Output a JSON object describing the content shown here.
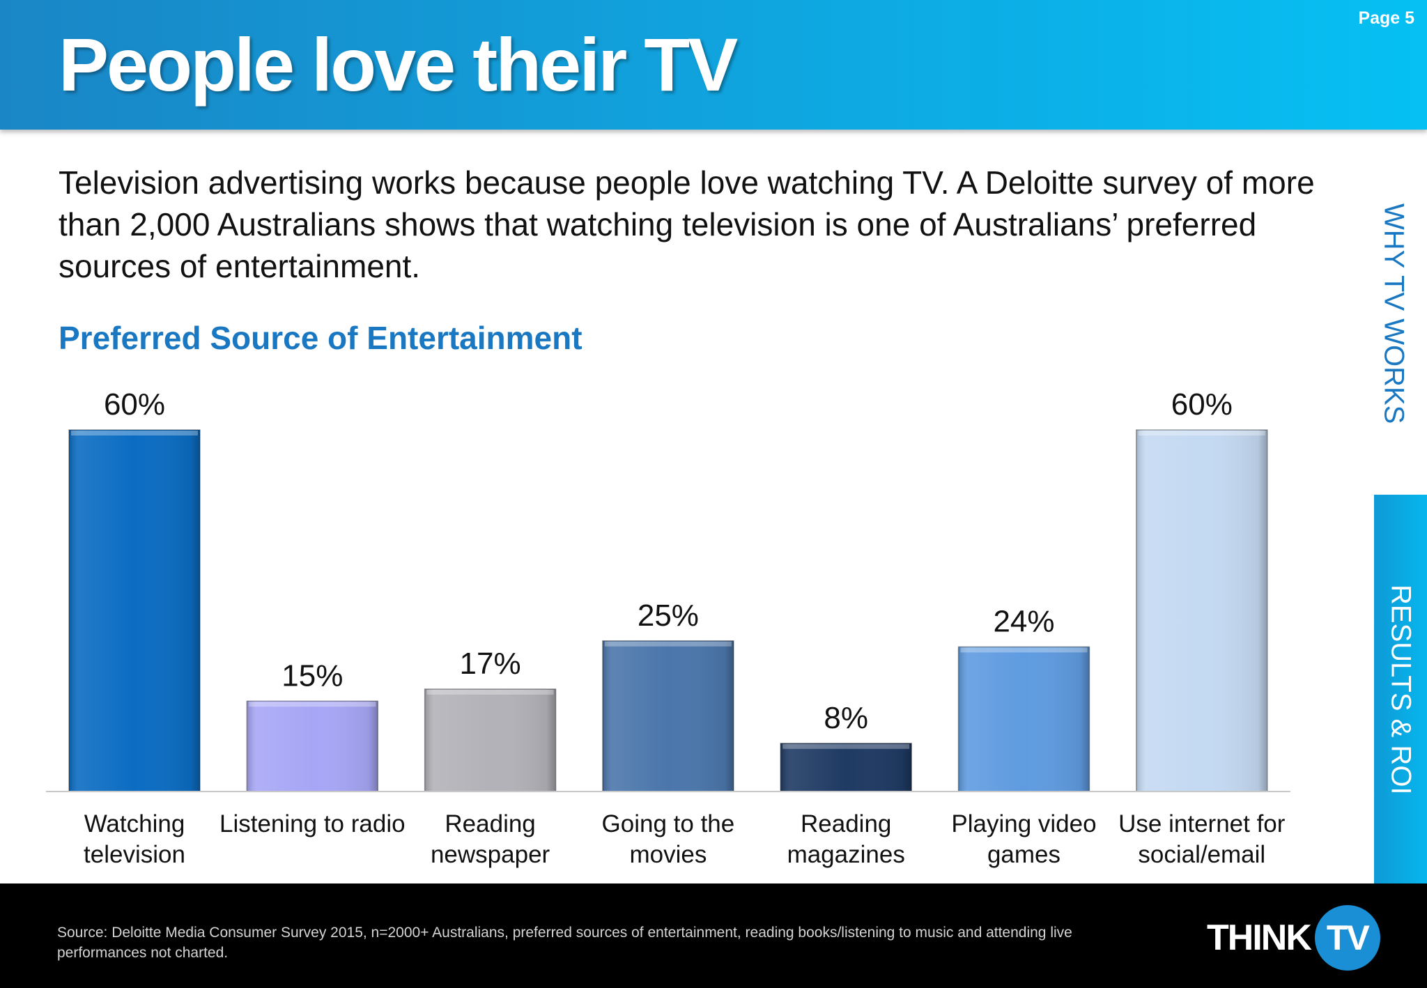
{
  "header": {
    "title": "People love their TV",
    "page": "Page 5"
  },
  "intro": "Television advertising works because people love watching TV.  A Deloitte survey of more than 2,000 Australians shows that watching television is one of Australians’ preferred sources of entertainment.",
  "side_nav": {
    "upper": "WHY TV WORKS",
    "active": "RESULTS & ROI"
  },
  "chart_data": {
    "type": "bar",
    "title": "Preferred Source of Entertainment",
    "xlabel": "",
    "ylabel": "",
    "ylim": [
      0,
      60
    ],
    "grid": false,
    "legend": "none",
    "categories": [
      [
        "Watching",
        "television"
      ],
      [
        "Listening to radio"
      ],
      [
        "Reading",
        "newspaper"
      ],
      [
        "Going to the",
        "movies"
      ],
      [
        "Reading",
        "magazines"
      ],
      [
        "Playing video",
        "games"
      ],
      [
        "Use internet for",
        "social/email"
      ]
    ],
    "values": [
      60,
      15,
      17,
      25,
      8,
      24,
      60
    ],
    "value_labels": [
      "60%",
      "15%",
      "17%",
      "25%",
      "8%",
      "24%",
      "60%"
    ],
    "colors": [
      "#0b6cc2",
      "#a7a6f6",
      "#b2b2b8",
      "#4b76ab",
      "#1f3a63",
      "#5f9be0",
      "#c4d9f2"
    ]
  },
  "footer": {
    "source": "Source: Deloitte Media Consumer Survey 2015, n=2000+ Australians, preferred sources of entertainment, reading books/listening to music and attending live performances not charted.",
    "logo_think": "THINK",
    "logo_tv": "TV"
  }
}
